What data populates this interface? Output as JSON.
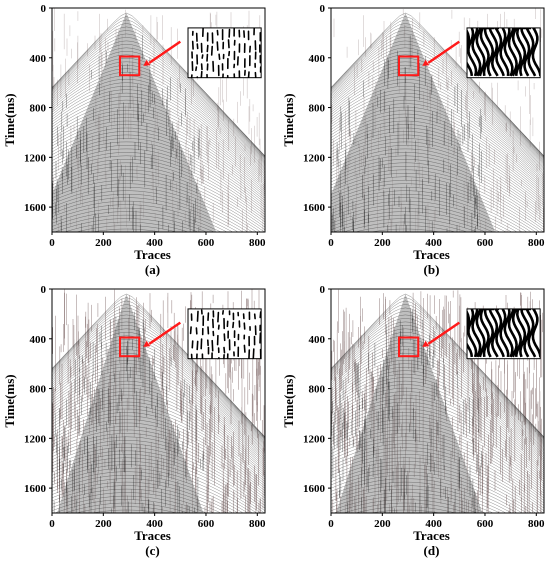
{
  "figure": {
    "panels": [
      {
        "id": "a",
        "label": "(a)",
        "y_axis_label": "Time(ms)",
        "x_axis_label": "Traces",
        "y_ticks": [
          "0",
          "400",
          "800",
          "1200",
          "1600"
        ],
        "x_ticks": [
          "0",
          "200",
          "400",
          "600",
          "800"
        ],
        "y_range": [
          0,
          1800
        ],
        "x_range": [
          0,
          830
        ],
        "noise_level": "low",
        "inset_pattern": "sparse-dashes",
        "accent_color": "#ff1a1a",
        "data_color": "#5a3a3a"
      },
      {
        "id": "b",
        "label": "(b)",
        "y_axis_label": "Time(ms)",
        "x_axis_label": "Traces",
        "y_ticks": [
          "0",
          "400",
          "800",
          "1200",
          "1600"
        ],
        "x_ticks": [
          "0",
          "200",
          "400",
          "600",
          "800"
        ],
        "y_range": [
          0,
          1800
        ],
        "x_range": [
          0,
          830
        ],
        "noise_level": "low",
        "inset_pattern": "dense-wavy",
        "accent_color": "#ff1a1a",
        "data_color": "#5a3a3a"
      },
      {
        "id": "c",
        "label": "(c)",
        "y_axis_label": "Time(ms)",
        "x_axis_label": "Traces",
        "y_ticks": [
          "0",
          "400",
          "800",
          "1200",
          "1600"
        ],
        "x_ticks": [
          "0",
          "200",
          "400",
          "600",
          "800"
        ],
        "y_range": [
          0,
          1800
        ],
        "x_range": [
          0,
          830
        ],
        "noise_level": "high",
        "inset_pattern": "sparse-dashes",
        "accent_color": "#ff1a1a",
        "data_color": "#5a3a3a"
      },
      {
        "id": "d",
        "label": "(d)",
        "y_axis_label": "Time(ms)",
        "x_axis_label": "Traces",
        "y_ticks": [
          "0",
          "400",
          "800",
          "1200",
          "1600"
        ],
        "x_ticks": [
          "0",
          "200",
          "400",
          "600",
          "800"
        ],
        "y_range": [
          0,
          1800
        ],
        "x_range": [
          0,
          830
        ],
        "noise_level": "high",
        "inset_pattern": "dense-wavy",
        "accent_color": "#ff1a1a",
        "data_color": "#5a3a3a"
      }
    ]
  }
}
